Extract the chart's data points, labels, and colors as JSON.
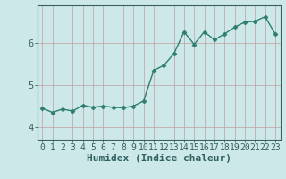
{
  "x": [
    0,
    1,
    2,
    3,
    4,
    5,
    6,
    7,
    8,
    9,
    10,
    11,
    12,
    13,
    14,
    15,
    16,
    17,
    18,
    19,
    20,
    21,
    22,
    23
  ],
  "y": [
    4.45,
    4.35,
    4.43,
    4.38,
    4.52,
    4.47,
    4.5,
    4.47,
    4.46,
    4.5,
    4.62,
    5.35,
    5.47,
    5.75,
    6.27,
    5.97,
    6.27,
    6.08,
    6.22,
    6.38,
    6.5,
    6.52,
    6.63,
    6.22
  ],
  "line_color": "#2e7d6e",
  "marker": "D",
  "marker_size": 2.5,
  "xlabel": "Humidex (Indice chaleur)",
  "xlim": [
    -0.5,
    23.5
  ],
  "ylim": [
    3.7,
    6.9
  ],
  "yticks": [
    4,
    5,
    6
  ],
  "xticks": [
    0,
    1,
    2,
    3,
    4,
    5,
    6,
    7,
    8,
    9,
    10,
    11,
    12,
    13,
    14,
    15,
    16,
    17,
    18,
    19,
    20,
    21,
    22,
    23
  ],
  "bg_color": "#cce8e8",
  "grid_color": "#c0a0a0",
  "axis_color": "#3a6060",
  "label_color": "#2e6060",
  "xlabel_fontsize": 8,
  "tick_fontsize": 7,
  "linewidth": 1.0
}
